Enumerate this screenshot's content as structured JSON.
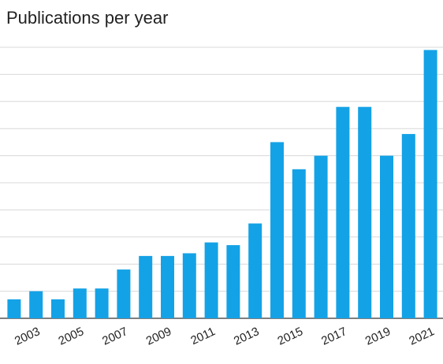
{
  "chart_data": {
    "type": "bar",
    "title": "Publications per year",
    "categories": [
      null,
      "2003",
      null,
      "2005",
      null,
      "2007",
      null,
      "2009",
      null,
      "2011",
      null,
      "2013",
      null,
      "2015",
      null,
      "2017",
      null,
      "2019",
      null,
      "2021"
    ],
    "values": [
      0.7,
      1.0,
      0.7,
      1.1,
      1.1,
      1.8,
      2.3,
      2.3,
      2.4,
      2.8,
      2.7,
      3.5,
      6.5,
      5.5,
      6.0,
      7.8,
      7.8,
      6.0,
      6.8,
      9.9
    ],
    "color": "#14a2e6",
    "ylim": [
      0,
      10
    ],
    "yticks": [
      0,
      1,
      2,
      3,
      4,
      5,
      6,
      7,
      8,
      9,
      10
    ],
    "grid": true
  }
}
